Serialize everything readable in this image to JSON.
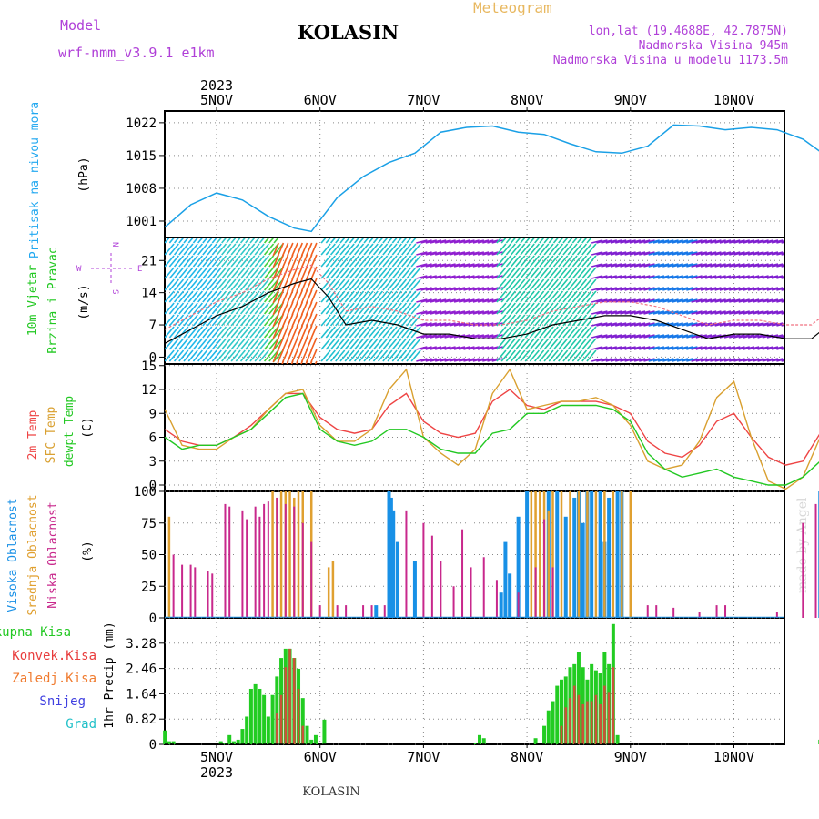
{
  "header": {
    "model_label": "Model",
    "model_name": "wrf-nmm_v3.9.1  e1km",
    "location": "KOLASIN",
    "title": "Meteogram",
    "coords": "lon,lat (19.4688E, 42.7875N)",
    "altitude": "Nadmorska Visina 945m",
    "model_altitude": "Nadmorska Visina u modelu 1173.5m",
    "year_top": "2023",
    "year_bottom": "2023",
    "footer_location": "KOLASIN",
    "credit": "made by Angel"
  },
  "colors": {
    "pressure": "#1aa0e6",
    "temp2m": "#ee4444",
    "sfc": "#d9a030",
    "dew": "#22c822",
    "high_cloud": "#1890e6",
    "mid_cloud": "#e0a030",
    "low_cloud": "#c8288c",
    "precip_total": "#22cc22",
    "precip_conv": "#e83c3c",
    "axes_label_purple": "#b040d8"
  },
  "days": [
    "5NOV",
    "6NOV",
    "7NOV",
    "8NOV",
    "9NOV",
    "10NOV"
  ],
  "panels": {
    "pressure": {
      "label": "Pritisak na nivou mora",
      "unit": "(hPa)",
      "ticks": [
        "1022",
        "1015",
        "1008",
        "1001"
      ]
    },
    "wind": {
      "label1": "10m Vjetar",
      "label2": "Brzina i Pravac",
      "unit": "(m/s)",
      "ticks": [
        "21",
        "14",
        "7",
        "0"
      ],
      "compass_n": "N",
      "compass_w": "W",
      "compass_e": "E",
      "compass_s": "S"
    },
    "temp": {
      "label1": "2m Temp",
      "label2": "SFC Temp",
      "label3": "dewpt Temp",
      "unit": "(C)",
      "ticks": [
        "15",
        "12",
        "9",
        "6",
        "3",
        "0"
      ]
    },
    "cloud": {
      "label1": "Visoka Oblacnost",
      "label2": "Srednja Oblacnost",
      "label3": "Niska Oblacnost",
      "unit": "(%)",
      "ticks": [
        "100",
        "75",
        "50",
        "25",
        "0"
      ]
    },
    "precip": {
      "label_total": "Ukupna Kisa",
      "label_conv": "Konvek.Kisa",
      "label_frz": "Zaledj.Kisa",
      "label_snow": "Snijeg",
      "label_grad": "Grad",
      "unit": "1hr Precip (mm)",
      "ticks": [
        "3.28",
        "2.46",
        "1.64",
        "0.82",
        "0"
      ]
    }
  },
  "chart_data": [
    {
      "type": "line",
      "title": "Pritisak na nivou mora",
      "ylabel": "(hPa)",
      "x_unit": "hours from 5NOV 00:00",
      "ylim": [
        997.5,
        1024.5
      ],
      "x": [
        -12,
        -6,
        0,
        6,
        12,
        18,
        22,
        28,
        34,
        40,
        46,
        52,
        58,
        64,
        70,
        76,
        82,
        88,
        94,
        100,
        106,
        112,
        118,
        124,
        130,
        136,
        142
      ],
      "values": [
        999.7,
        1004.5,
        1007,
        1005.5,
        1002,
        999.5,
        998.8,
        1006,
        1010.5,
        1013.5,
        1015.5,
        1020,
        1021,
        1021.3,
        1020,
        1019.5,
        1017.5,
        1015.8,
        1015.5,
        1017,
        1021.5,
        1021.3,
        1020.5,
        1021,
        1020.5,
        1018.5,
        1014.5
      ]
    },
    {
      "type": "line",
      "title": "10m Vjetar Brzina i Pravac",
      "ylabel": "(m/s)",
      "ylim": [
        -1.5,
        26
      ],
      "x": [
        -12,
        -6,
        0,
        6,
        12,
        18,
        22,
        26,
        30,
        36,
        42,
        48,
        54,
        60,
        66,
        72,
        78,
        84,
        90,
        96,
        102,
        108,
        114,
        120,
        126,
        132,
        138,
        142
      ],
      "values": [
        3,
        6,
        9,
        11,
        14,
        16,
        17,
        13,
        7,
        8,
        7,
        5,
        5,
        4,
        4,
        5,
        7,
        8,
        9,
        9,
        8,
        6,
        4,
        5,
        5,
        4,
        4,
        7
      ]
    },
    {
      "type": "line",
      "title": "2m Temp / SFC Temp / dewpt Temp",
      "ylabel": "(C)",
      "ylim": [
        -0.8,
        15.2
      ],
      "x": [
        -12,
        -8,
        -4,
        0,
        4,
        8,
        12,
        16,
        20,
        24,
        28,
        32,
        36,
        40,
        44,
        48,
        52,
        56,
        60,
        64,
        68,
        72,
        76,
        80,
        84,
        88,
        92,
        96,
        100,
        104,
        108,
        112,
        116,
        120,
        124,
        128,
        132,
        136,
        140,
        142
      ],
      "series": [
        {
          "name": "2m Temp",
          "values": [
            7,
            5.5,
            5,
            5,
            6,
            7.5,
            9.5,
            11.5,
            11.5,
            8.5,
            7,
            6.5,
            7,
            10,
            11.5,
            8,
            6.5,
            6,
            6.5,
            10.5,
            12,
            10,
            9.5,
            10.5,
            10.5,
            10.5,
            10,
            9,
            5.5,
            4,
            3.5,
            5,
            8,
            9,
            6,
            3.5,
            2.5,
            3,
            6.5,
            8
          ]
        },
        {
          "name": "SFC Temp",
          "values": [
            9.5,
            5,
            4.5,
            4.5,
            6,
            7,
            9.5,
            11.5,
            12,
            7.5,
            5.5,
            5.5,
            7,
            12,
            14.5,
            6,
            4,
            2.5,
            4.5,
            11.5,
            14.5,
            9.5,
            10,
            10.5,
            10.5,
            11,
            10,
            7.5,
            3,
            2,
            2.5,
            5.5,
            11,
            13,
            6,
            0.5,
            -0.5,
            1,
            6,
            10
          ]
        },
        {
          "name": "dewpt Temp",
          "values": [
            6,
            4.5,
            5,
            5,
            6,
            7,
            9,
            11,
            11.5,
            7,
            5.5,
            5,
            5.5,
            7,
            7,
            6,
            4.5,
            4,
            4,
            6.5,
            7,
            9,
            9,
            10,
            10,
            10,
            9.5,
            8,
            4,
            2,
            1,
            1.5,
            2,
            1,
            0.5,
            0,
            0,
            1,
            3,
            6
          ]
        }
      ]
    },
    {
      "type": "bar",
      "title": "Visoka / Srednja / Niska Oblacnost",
      "ylabel": "(%)",
      "ylim": [
        0,
        100
      ],
      "series": [
        {
          "name": "Visoka Oblacnost",
          "x": [
            37,
            40,
            40.5,
            41,
            42,
            46,
            66,
            67,
            68,
            70,
            72,
            77,
            79,
            81,
            83,
            84,
            85,
            86,
            87,
            89,
            90,
            91,
            93,
            94,
            140,
            141,
            142
          ],
          "values": [
            10,
            100,
            95,
            85,
            60,
            45,
            20,
            60,
            35,
            80,
            100,
            100,
            100,
            80,
            95,
            100,
            75,
            100,
            100,
            100,
            60,
            95,
            100,
            100,
            100,
            90,
            100
          ]
        },
        {
          "name": "Srednja Oblacnost",
          "x": [
            -11,
            13,
            14,
            15,
            16,
            17,
            18,
            19,
            20,
            22,
            26,
            27,
            73,
            74,
            75,
            76,
            77,
            78,
            80,
            82,
            84,
            86,
            88,
            90,
            92,
            94,
            96
          ],
          "values": [
            80,
            100,
            95,
            100,
            100,
            100,
            95,
            100,
            100,
            100,
            40,
            45,
            100,
            100,
            100,
            100,
            85,
            100,
            100,
            100,
            100,
            100,
            100,
            100,
            100,
            100,
            100
          ]
        },
        {
          "name": "Niska Oblacnost",
          "x": [
            -10,
            -8,
            -6,
            -5,
            -2,
            -1,
            2,
            3,
            6,
            7,
            9,
            10,
            11,
            12,
            14,
            16,
            18,
            20,
            22,
            24,
            28,
            30,
            34,
            36,
            39,
            44,
            48,
            50,
            52,
            55,
            57,
            59,
            62,
            65,
            70,
            74,
            76,
            78,
            100,
            102,
            106,
            112,
            116,
            118,
            130,
            136,
            139
          ],
          "values": [
            50,
            42,
            42,
            40,
            37,
            35,
            90,
            88,
            85,
            78,
            88,
            80,
            90,
            92,
            95,
            90,
            88,
            75,
            60,
            10,
            10,
            10,
            10,
            10,
            10,
            85,
            75,
            65,
            45,
            25,
            70,
            40,
            48,
            30,
            20,
            40,
            78,
            40,
            10,
            10,
            8,
            5,
            10,
            10,
            5,
            75,
            90
          ]
        }
      ]
    },
    {
      "type": "bar",
      "title": "1hr Precip",
      "ylabel": "1hr Precip (mm)",
      "ylim": [
        0,
        4.1
      ],
      "series": [
        {
          "name": "Ukupna Kisa",
          "x": [
            -12,
            -11,
            -10,
            1,
            2,
            3,
            4,
            5,
            6,
            7,
            8,
            9,
            10,
            11,
            12,
            13,
            14,
            15,
            16,
            17,
            18,
            19,
            20,
            21,
            22,
            23,
            25,
            60,
            61,
            62,
            74,
            76,
            77,
            78,
            79,
            80,
            81,
            82,
            83,
            84,
            85,
            86,
            87,
            88,
            89,
            90,
            91,
            92,
            93,
            140,
            141
          ],
          "values": [
            0.45,
            0.1,
            0.1,
            0.1,
            0.05,
            0.3,
            0.1,
            0.15,
            0.5,
            0.9,
            1.8,
            1.95,
            1.8,
            1.6,
            0.9,
            1.6,
            2.2,
            2.8,
            3.1,
            3.1,
            2.8,
            2.45,
            1.5,
            0.6,
            0.15,
            0.3,
            0.8,
            0.05,
            0.3,
            0.2,
            0.2,
            0.6,
            1.1,
            1.4,
            1.9,
            2.1,
            2.2,
            2.5,
            2.6,
            3,
            2.5,
            2.1,
            2.6,
            2.4,
            2.3,
            3,
            2.6,
            3.9,
            0.3,
            0.15,
            0.1
          ]
        },
        {
          "name": "Konvek.Kisa",
          "x": [
            14,
            15,
            16,
            17,
            18,
            19,
            20,
            80,
            81,
            82,
            83,
            84,
            85,
            86,
            87,
            88,
            89,
            90,
            91,
            92
          ],
          "values": [
            1.0,
            1.6,
            2.5,
            3.1,
            2.8,
            1.8,
            0.6,
            0.6,
            1.2,
            1.5,
            1.9,
            1.6,
            1.3,
            1.4,
            1.4,
            1.6,
            1.3,
            1.9,
            1.7,
            2.5
          ]
        }
      ]
    }
  ]
}
